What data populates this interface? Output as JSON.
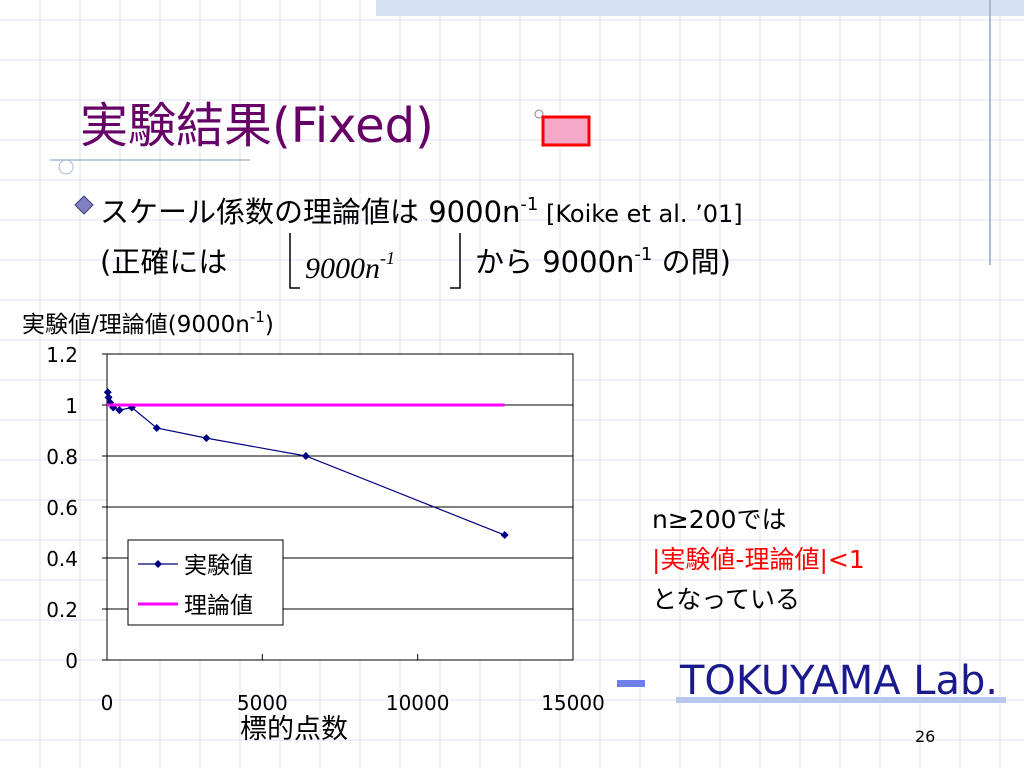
{
  "slide": {
    "title": "実験結果(Fixed)",
    "bullet": {
      "line1": [
        "スケール係数の理論値は 9000n",
        "-1",
        " [Koike et al. ’01]"
      ],
      "line2": [
        "(正確には",
        "9000n",
        "-1",
        "から 9000n",
        "-1",
        " の間)"
      ]
    },
    "note": [
      "n≥200では",
      "|実験値-理論値|<1",
      "となっている"
    ],
    "footer": "TOKUYAMA Lab.",
    "page": "26"
  },
  "chart_data": {
    "type": "line",
    "ylabel": [
      "実験値/理論値(9000n",
      "-1",
      ")"
    ],
    "xlabel": "標的点数",
    "xlim": [
      0,
      15000
    ],
    "xticks": [
      0,
      5000,
      10000,
      15000
    ],
    "ylim": [
      0,
      1.2
    ],
    "yticks": [
      0,
      0.2,
      0.4,
      0.6,
      0.8,
      1,
      1.2
    ],
    "grid": true,
    "legend": "lower left",
    "series": [
      {
        "name": "実験値",
        "color": "#000080",
        "marker": "diamond",
        "x": [
          25,
          50,
          100,
          200,
          400,
          800,
          1600,
          3200,
          6400,
          12800
        ],
        "values": [
          1.05,
          1.03,
          1.01,
          0.99,
          0.98,
          0.99,
          0.91,
          0.87,
          0.8,
          0.49
        ]
      },
      {
        "name": "理論値",
        "color": "#ff00ff",
        "marker": "none",
        "x": [
          0,
          12800
        ],
        "values": [
          1,
          1
        ]
      }
    ]
  }
}
